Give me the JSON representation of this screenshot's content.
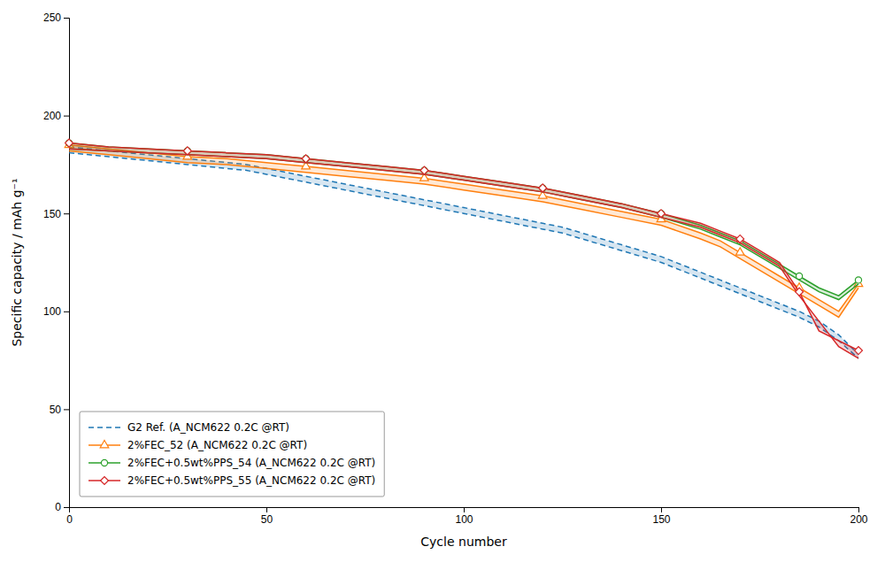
{
  "chart_data": {
    "type": "line",
    "xlabel": "Cycle number",
    "ylabel": "Specific capacity / mAh g⁻¹",
    "xlim": [
      0,
      200
    ],
    "ylim": [
      0,
      250
    ],
    "xticks": [
      0,
      50,
      100,
      150,
      200
    ],
    "yticks": [
      0,
      50,
      100,
      150,
      200,
      250
    ],
    "grid": false,
    "legend": "lower left",
    "series": [
      {
        "name": "G2 Ref. (A_NCM622 0.2C @RT)",
        "line_style": "dashed",
        "marker": "none",
        "x": [
          0,
          5,
          10,
          15,
          20,
          25,
          30,
          35,
          40,
          45,
          50,
          55,
          60,
          65,
          70,
          75,
          80,
          85,
          90,
          95,
          100,
          105,
          110,
          115,
          120,
          125,
          130,
          135,
          140,
          145,
          150,
          155,
          160,
          165,
          170,
          175,
          180,
          185,
          190,
          195,
          200
        ],
        "charge": [
          184,
          183,
          182,
          181,
          180,
          179,
          178,
          177,
          176,
          175,
          173,
          171,
          169,
          167,
          165,
          163,
          161,
          159,
          157,
          155,
          153,
          151,
          149,
          147,
          145,
          143,
          140,
          137,
          134,
          131,
          128,
          124,
          120,
          116,
          112,
          108,
          104,
          100,
          95,
          88,
          78
        ],
        "discharge": [
          181,
          180,
          179,
          178,
          177,
          176,
          175,
          174,
          173,
          172,
          170,
          168,
          166,
          164,
          162,
          160,
          158,
          156,
          154,
          152,
          150,
          148,
          146,
          144,
          142,
          140,
          137,
          134,
          131,
          128,
          125,
          121,
          117,
          113,
          109,
          105,
          101,
          97,
          92,
          85,
          76
        ]
      },
      {
        "name": "2%FEC_52 (A_NCM622 0.2C @RT)",
        "line_style": "solid",
        "marker": "triangle",
        "x": [
          0,
          10,
          20,
          30,
          40,
          50,
          60,
          70,
          80,
          90,
          100,
          110,
          120,
          130,
          140,
          150,
          160,
          165,
          170,
          175,
          180,
          185,
          190,
          195,
          200
        ],
        "charge": [
          185,
          183,
          181,
          179,
          178,
          176,
          174,
          172,
          170,
          168,
          165,
          162,
          159,
          155,
          151,
          147,
          140,
          136,
          130,
          124,
          118,
          112,
          106,
          100,
          114
        ],
        "discharge": [
          182,
          180,
          178,
          176,
          175,
          173,
          171,
          169,
          167,
          165,
          162,
          159,
          156,
          152,
          148,
          144,
          137,
          133,
          127,
          121,
          115,
          109,
          103,
          97,
          112
        ]
      },
      {
        "name": "2%FEC+0.5wt%PPS_54 (A_NCM622 0.2C @RT)",
        "line_style": "solid",
        "marker": "circle",
        "x": [
          0,
          10,
          20,
          30,
          40,
          50,
          60,
          70,
          80,
          90,
          100,
          110,
          120,
          130,
          140,
          150,
          160,
          165,
          170,
          175,
          180,
          185,
          190,
          195,
          200
        ],
        "charge": [
          186,
          184,
          183,
          182,
          181,
          180,
          178,
          176,
          174,
          172,
          169,
          166,
          163,
          159,
          155,
          150,
          144,
          140,
          136,
          130,
          124,
          118,
          112,
          108,
          116
        ],
        "discharge": [
          183,
          182,
          181,
          180,
          179,
          178,
          176,
          174,
          172,
          170,
          167,
          164,
          161,
          157,
          153,
          148,
          142,
          138,
          134,
          128,
          122,
          116,
          110,
          106,
          114
        ]
      },
      {
        "name": "2%FEC+0.5wt%PPS_55 (A_NCM622 0.2C @RT)",
        "line_style": "solid",
        "marker": "diamond",
        "x": [
          0,
          10,
          20,
          30,
          40,
          50,
          60,
          70,
          80,
          90,
          100,
          110,
          120,
          130,
          140,
          150,
          160,
          165,
          170,
          175,
          180,
          185,
          190,
          195,
          200
        ],
        "charge": [
          186,
          184,
          183,
          182,
          181,
          180,
          178,
          176,
          174,
          172,
          169,
          166,
          163,
          159,
          155,
          150,
          145,
          141,
          137,
          131,
          125,
          110,
          90,
          85,
          80
        ],
        "discharge": [
          183,
          182,
          181,
          180,
          179,
          178,
          176,
          174,
          172,
          170,
          167,
          164,
          161,
          157,
          153,
          148,
          143,
          139,
          135,
          129,
          123,
          108,
          95,
          82,
          76
        ]
      }
    ]
  }
}
